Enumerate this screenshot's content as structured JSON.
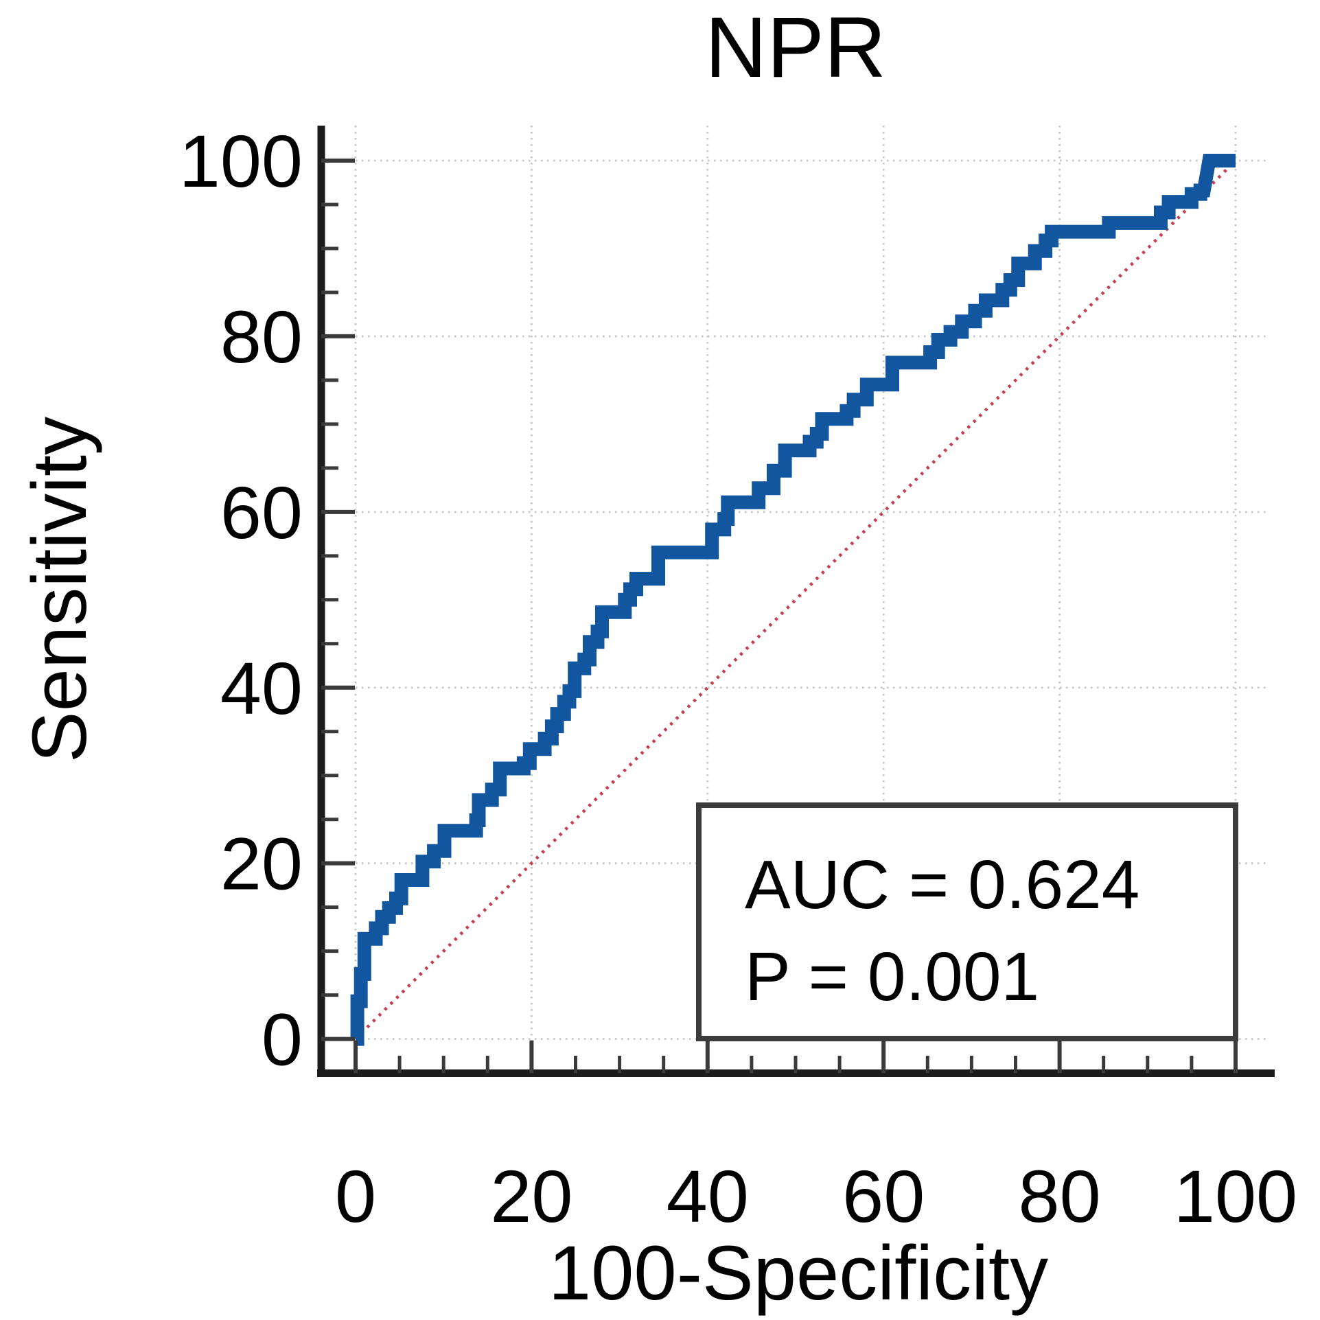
{
  "figure": {
    "title": "NPR",
    "x_axis_label": "100-Specificity",
    "y_axis_label": "Sensitivity",
    "annotation": {
      "auc_line": "AUC = 0.624",
      "p_line": "P = 0.001"
    }
  },
  "colors": {
    "background": "#ffffff",
    "curve": "#1256a0",
    "diagonal": "#c73e52",
    "grid": "#c6c6c6",
    "spine": "#1c1c1c",
    "tick": "#3a3a3a",
    "box_border": "#3c3c3c",
    "text": "#000000"
  },
  "chart_data": {
    "type": "line",
    "title": "NPR",
    "xlabel": "100-Specificity",
    "ylabel": "Sensitivity",
    "xlim": [
      0,
      100
    ],
    "ylim": [
      0,
      100
    ],
    "x_ticks": [
      0,
      20,
      40,
      60,
      80,
      100
    ],
    "y_ticks": [
      0,
      20,
      40,
      60,
      80,
      100
    ],
    "minor_tick_step": 5,
    "grid": true,
    "legend": false,
    "annotations": [
      "AUC = 0.624",
      "P = 0.001"
    ],
    "series": [
      {
        "name": "ROC curve (NPR)",
        "type": "step",
        "points": [
          [
            0,
            0
          ],
          [
            0.2,
            0
          ],
          [
            0.2,
            4.3
          ],
          [
            0.6,
            4.3
          ],
          [
            0.6,
            7.4
          ],
          [
            1.0,
            7.4
          ],
          [
            1.0,
            11.4
          ],
          [
            2.3,
            11.4
          ],
          [
            2.3,
            12.6
          ],
          [
            3.0,
            12.6
          ],
          [
            3.0,
            13.9
          ],
          [
            3.8,
            13.9
          ],
          [
            3.8,
            14.9
          ],
          [
            4.6,
            14.9
          ],
          [
            4.6,
            16.0
          ],
          [
            5.2,
            16.0
          ],
          [
            5.2,
            18.1
          ],
          [
            7.6,
            18.1
          ],
          [
            7.6,
            20.2
          ],
          [
            8.9,
            20.2
          ],
          [
            8.9,
            21.4
          ],
          [
            10.1,
            21.4
          ],
          [
            10.1,
            23.7
          ],
          [
            13.7,
            23.7
          ],
          [
            13.7,
            24.9
          ],
          [
            14.0,
            24.9
          ],
          [
            14.0,
            27.2
          ],
          [
            15.5,
            27.2
          ],
          [
            15.5,
            28.4
          ],
          [
            16.4,
            28.4
          ],
          [
            16.4,
            30.8
          ],
          [
            19.1,
            30.8
          ],
          [
            19.1,
            31.4
          ],
          [
            19.8,
            31.4
          ],
          [
            19.8,
            33.0
          ],
          [
            21.5,
            33.0
          ],
          [
            21.5,
            34.2
          ],
          [
            22.3,
            34.2
          ],
          [
            22.3,
            35.6
          ],
          [
            22.9,
            35.6
          ],
          [
            22.9,
            37.0
          ],
          [
            23.7,
            37.0
          ],
          [
            23.7,
            38.4
          ],
          [
            24.3,
            38.4
          ],
          [
            24.3,
            39.6
          ],
          [
            24.9,
            39.6
          ],
          [
            24.9,
            42.2
          ],
          [
            26.0,
            42.2
          ],
          [
            26.0,
            43.2
          ],
          [
            26.6,
            43.2
          ],
          [
            26.6,
            45.2
          ],
          [
            27.5,
            45.2
          ],
          [
            27.5,
            46.4
          ],
          [
            28.0,
            46.4
          ],
          [
            28.0,
            48.6
          ],
          [
            30.6,
            48.6
          ],
          [
            30.6,
            50.0
          ],
          [
            31.2,
            50.0
          ],
          [
            31.2,
            51.2
          ],
          [
            31.9,
            51.2
          ],
          [
            31.9,
            52.4
          ],
          [
            34.4,
            52.4
          ],
          [
            34.4,
            55.4
          ],
          [
            40.5,
            55.4
          ],
          [
            40.5,
            58.0
          ],
          [
            41.9,
            58.0
          ],
          [
            41.9,
            59.2
          ],
          [
            42.3,
            59.2
          ],
          [
            42.3,
            61.1
          ],
          [
            45.8,
            61.1
          ],
          [
            45.8,
            62.7
          ],
          [
            47.5,
            62.7
          ],
          [
            47.5,
            64.7
          ],
          [
            48.8,
            64.7
          ],
          [
            48.8,
            67.0
          ],
          [
            51.6,
            67.0
          ],
          [
            51.6,
            68.0
          ],
          [
            52.4,
            68.0
          ],
          [
            52.4,
            68.9
          ],
          [
            53.0,
            68.9
          ],
          [
            53.0,
            70.6
          ],
          [
            55.8,
            70.6
          ],
          [
            55.8,
            71.5
          ],
          [
            56.6,
            71.5
          ],
          [
            56.6,
            72.8
          ],
          [
            58.1,
            72.8
          ],
          [
            58.1,
            74.5
          ],
          [
            61.0,
            74.5
          ],
          [
            61.0,
            77.0
          ],
          [
            65.3,
            77.0
          ],
          [
            65.3,
            78.2
          ],
          [
            66.2,
            78.2
          ],
          [
            66.2,
            79.6
          ],
          [
            67.6,
            79.6
          ],
          [
            67.6,
            80.5
          ],
          [
            68.9,
            80.5
          ],
          [
            68.9,
            81.7
          ],
          [
            70.4,
            81.7
          ],
          [
            70.4,
            82.9
          ],
          [
            71.6,
            82.9
          ],
          [
            71.6,
            84.1
          ],
          [
            73.5,
            84.1
          ],
          [
            73.5,
            85.3
          ],
          [
            74.4,
            85.3
          ],
          [
            74.4,
            86.4
          ],
          [
            75.3,
            86.4
          ],
          [
            75.3,
            88.3
          ],
          [
            77.2,
            88.3
          ],
          [
            77.2,
            89.7
          ],
          [
            78.4,
            89.7
          ],
          [
            78.4,
            90.9
          ],
          [
            79.1,
            90.9
          ],
          [
            79.1,
            91.9
          ],
          [
            85.6,
            91.9
          ],
          [
            85.6,
            92.9
          ],
          [
            91.5,
            92.9
          ],
          [
            91.5,
            94.1
          ],
          [
            92.4,
            94.1
          ],
          [
            92.4,
            95.3
          ],
          [
            95.0,
            95.3
          ],
          [
            95.0,
            96.2
          ],
          [
            96.0,
            96.2
          ],
          [
            96.0,
            96.6
          ],
          [
            96.4,
            96.6
          ],
          [
            97.0,
            100
          ],
          [
            100,
            100
          ]
        ]
      },
      {
        "name": "reference diagonal",
        "type": "line",
        "points": [
          [
            0,
            0
          ],
          [
            100,
            100
          ]
        ]
      }
    ]
  }
}
